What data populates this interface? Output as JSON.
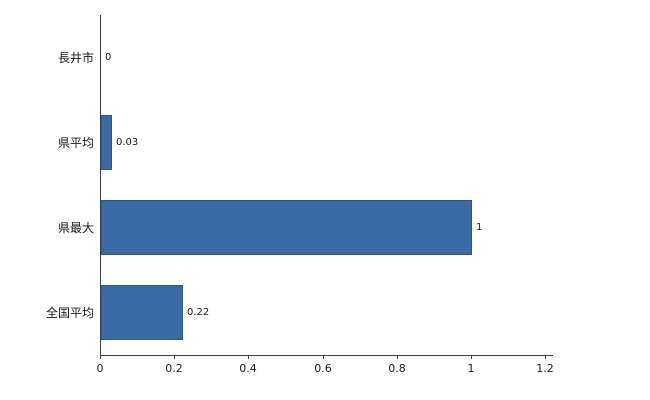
{
  "chart_data": {
    "type": "bar",
    "orientation": "horizontal",
    "title": "",
    "xlabel": "",
    "ylabel": "",
    "categories": [
      "長井市",
      "県平均",
      "県最大",
      "全国平均"
    ],
    "values": [
      0,
      0.03,
      1,
      0.22
    ],
    "value_labels": [
      "0",
      "0.03",
      "1",
      "0.22"
    ],
    "x_ticks": [
      0,
      0.2,
      0.4,
      0.6,
      0.8,
      1,
      1.2
    ],
    "x_tick_labels": [
      "0",
      "0.2",
      "0.4",
      "0.6",
      "0.8",
      "1",
      "1.2"
    ],
    "xlim": [
      0,
      1.2
    ],
    "grid": false,
    "legend": false,
    "bar_color": "#3b6ba5",
    "bar_border_color": "#2e5984",
    "axis_color": "#404040",
    "text_color": "#1a1a1a",
    "background_color": "#ffffff"
  }
}
